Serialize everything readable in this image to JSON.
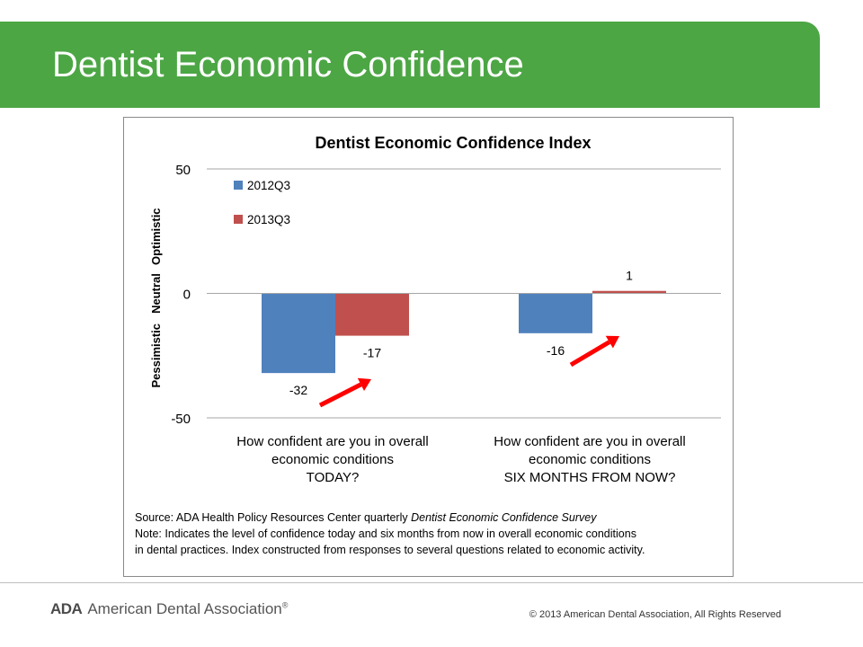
{
  "slide": {
    "title": "Dentist Economic Confidence",
    "banner_color": "#4ca644"
  },
  "chart_data": {
    "type": "bar",
    "title": "Dentist Economic Confidence Index",
    "categories": [
      [
        "How confident are you in overall",
        "economic conditions",
        "TODAY?"
      ],
      [
        "How confident are you in overall",
        "economic conditions",
        "SIX MONTHS FROM NOW?"
      ]
    ],
    "series": [
      {
        "name": "2012Q3",
        "values": [
          -32,
          -16
        ],
        "color": "#4f81bd"
      },
      {
        "name": "2013Q3",
        "values": [
          -17,
          1
        ],
        "color": "#c0504d"
      }
    ],
    "data_labels": [
      [
        "-32",
        "-16"
      ],
      [
        "-17",
        "1"
      ]
    ],
    "ylim": [
      -50,
      50
    ],
    "yticks": [
      "-50",
      "0",
      "50"
    ],
    "y_region_labels": [
      "Optimistic",
      "Neutral",
      "Pessimistic"
    ],
    "grid": true,
    "legend_position": "top-left",
    "annotations": [
      "red arrow from 2012Q3 to 2013Q3 (TODAY)",
      "red arrow from 2012Q3 to 2013Q3 (SIX MONTHS FROM NOW)"
    ],
    "arrow_color": "#ff0000",
    "notes": [
      {
        "segments": [
          {
            "text": "Source: ADA Health Policy Resources Center quarterly ",
            "italic": false
          },
          {
            "text": "Dentist Economic Confidence Survey",
            "italic": true
          }
        ]
      },
      {
        "segments": [
          {
            "text": "Note:  Indicates the  level of confidence today and six months from now in overall economic conditions",
            "italic": false
          }
        ]
      },
      {
        "segments": [
          {
            "text": "in dental practices. Index constructed from responses to several questions related to economic activity.",
            "italic": false
          }
        ]
      }
    ]
  },
  "footer": {
    "logo_abbr": "ADA",
    "logo_name": "American Dental Association",
    "logo_reg": "®",
    "copyright": "© 2013 American Dental Association,  All Rights Reserved"
  }
}
